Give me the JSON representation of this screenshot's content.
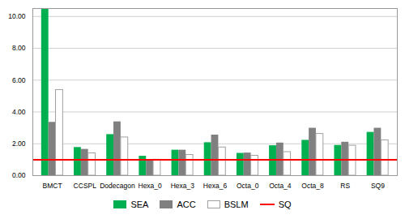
{
  "chart_data": {
    "type": "bar",
    "categories": [
      "BMCT",
      "CCSPL",
      "Dodecagon",
      "Hexa_0",
      "Hexa_3",
      "Hexa_6",
      "Octa_0",
      "Octa_4",
      "Octa_8",
      "RS",
      "SQ9"
    ],
    "series": [
      {
        "name": "SEA",
        "color": "#00b050",
        "values": [
          10.45,
          1.77,
          2.58,
          1.22,
          1.6,
          2.07,
          1.4,
          1.88,
          2.22,
          1.9,
          2.72
        ]
      },
      {
        "name": "ACC",
        "color": "#808080",
        "values": [
          3.35,
          1.65,
          3.38,
          1.0,
          1.6,
          2.55,
          1.42,
          2.05,
          2.98,
          2.1,
          2.98
        ]
      },
      {
        "name": "BSLM",
        "color": "#ffffff",
        "values": [
          5.38,
          1.4,
          2.4,
          1.0,
          1.3,
          1.77,
          1.25,
          1.48,
          2.62,
          1.88,
          2.22
        ]
      },
      {
        "name": "SQ",
        "type": "line",
        "color": "#ff0000",
        "values": [
          1.0,
          1.0,
          1.0,
          1.0,
          1.0,
          1.0,
          1.0,
          1.0,
          1.0,
          1.0,
          1.0
        ]
      }
    ],
    "ylim": [
      0,
      10.5
    ],
    "yticks": [
      {
        "value": 0.0,
        "label": "0.00"
      },
      {
        "value": 2.0,
        "label": "2.00"
      },
      {
        "value": 4.0,
        "label": "4.00"
      },
      {
        "value": 6.0,
        "label": "6.00"
      },
      {
        "value": 8.0,
        "label": "8.00"
      },
      {
        "value": 10.0,
        "label": "10.00"
      }
    ],
    "grid": true,
    "legend": "bottom"
  }
}
